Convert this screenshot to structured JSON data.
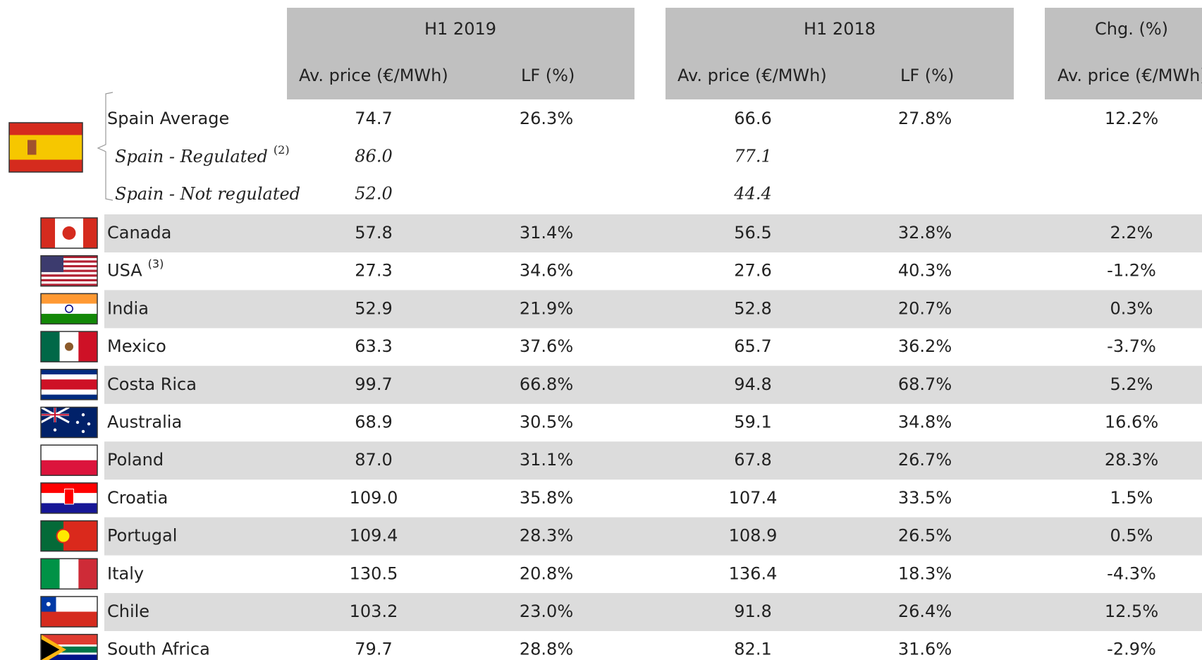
{
  "table": {
    "groups": [
      "H1 2019",
      "H1 2018",
      "Chg. (%)"
    ],
    "subheaders": [
      "Av. price (€/MWh)",
      "LF (%)",
      "Av. price (€/MWh)",
      "LF (%)",
      "Av. price (€/MWh)"
    ],
    "rows": [
      {
        "label": "Spain Average",
        "cells": [
          "74.7",
          "26.3%",
          "66.6",
          "27.8%",
          "12.2%"
        ]
      },
      {
        "label": "Spain - Regulated",
        "note": "(2)",
        "italic": true,
        "cells": [
          "86.0",
          null,
          "77.1",
          null,
          null
        ]
      },
      {
        "label": "Spain - Not regulated",
        "italic": true,
        "cells": [
          "52.0",
          null,
          "44.4",
          null,
          null
        ]
      },
      {
        "label": "Canada",
        "cells": [
          "57.8",
          "31.4%",
          "56.5",
          "32.8%",
          "2.2%"
        ]
      },
      {
        "label": "USA",
        "note": "(3)",
        "cells": [
          "27.3",
          "34.6%",
          "27.6",
          "40.3%",
          "-1.2%"
        ]
      },
      {
        "label": "India",
        "cells": [
          "52.9",
          "21.9%",
          "52.8",
          "20.7%",
          "0.3%"
        ]
      },
      {
        "label": "Mexico",
        "cells": [
          "63.3",
          "37.6%",
          "65.7",
          "36.2%",
          "-3.7%"
        ]
      },
      {
        "label": "Costa Rica",
        "cells": [
          "99.7",
          "66.8%",
          "94.8",
          "68.7%",
          "5.2%"
        ]
      },
      {
        "label": "Australia",
        "cells": [
          "68.9",
          "30.5%",
          "59.1",
          "34.8%",
          "16.6%"
        ]
      },
      {
        "label": "Poland",
        "cells": [
          "87.0",
          "31.1%",
          "67.8",
          "26.7%",
          "28.3%"
        ]
      },
      {
        "label": "Croatia",
        "cells": [
          "109.0",
          "35.8%",
          "107.4",
          "33.5%",
          "1.5%"
        ]
      },
      {
        "label": "Portugal",
        "cells": [
          "109.4",
          "28.3%",
          "108.9",
          "26.5%",
          "0.5%"
        ]
      },
      {
        "label": "Italy",
        "cells": [
          "130.5",
          "20.8%",
          "136.4",
          "18.3%",
          "-4.3%"
        ]
      },
      {
        "label": "Chile",
        "cells": [
          "103.2",
          "23.0%",
          "91.8",
          "26.4%",
          "12.5%"
        ]
      },
      {
        "label": "South Africa",
        "cells": [
          "79.7",
          "28.8%",
          "82.1",
          "31.6%",
          "-2.9%"
        ]
      }
    ]
  }
}
